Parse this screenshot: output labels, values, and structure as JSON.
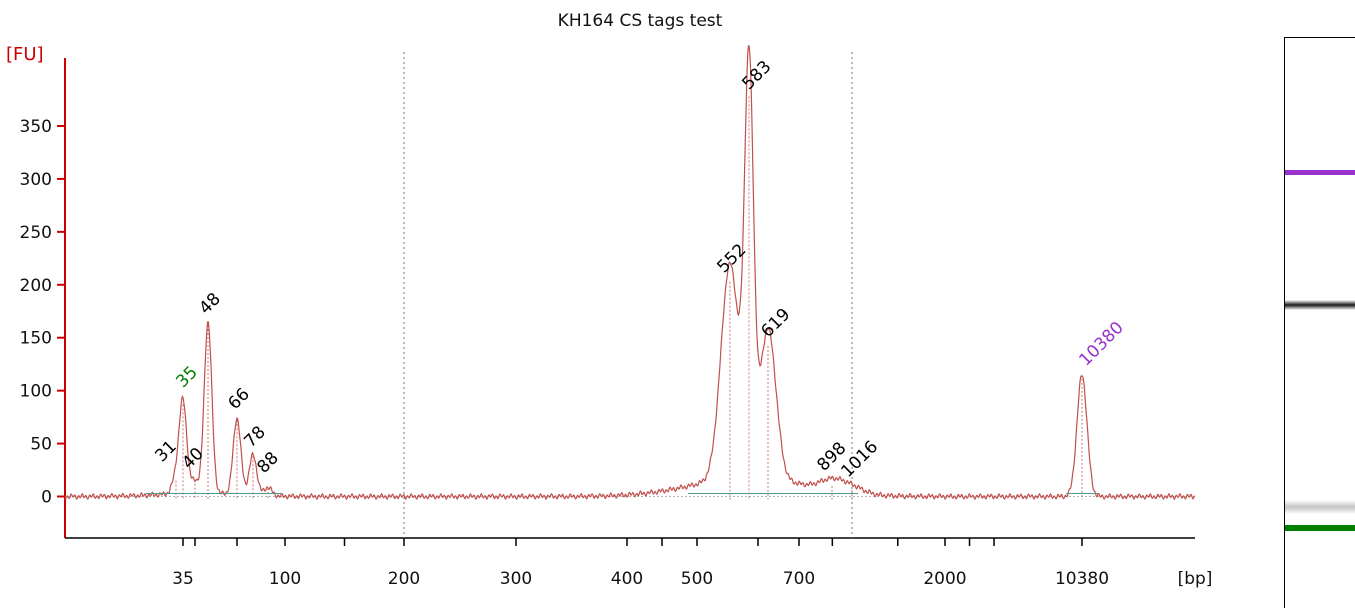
{
  "chart_data": {
    "type": "line",
    "title": "KH164 CS tags test",
    "ylabel": "[FU]",
    "xlabel": "[bp]",
    "ylim": [
      -45,
      420
    ],
    "y_ticks": [
      0,
      50,
      100,
      150,
      200,
      250,
      300,
      350
    ],
    "x_tick_labels": [
      "35",
      "100",
      "200",
      "300",
      "400",
      "500",
      "700",
      "2000",
      "10380"
    ],
    "grid": false,
    "series": [
      {
        "values": [
          [
            31,
            15
          ],
          [
            35,
            87
          ],
          [
            40,
            12
          ],
          [
            48,
            162
          ],
          [
            66,
            72
          ],
          [
            78,
            38
          ],
          [
            88,
            8
          ],
          [
            552,
            203
          ],
          [
            583,
            378
          ],
          [
            619,
            142
          ],
          [
            898,
            10
          ],
          [
            1016,
            6
          ],
          [
            10380,
            115
          ]
        ]
      }
    ],
    "peak_labels": [
      {
        "text": "31",
        "color": "#000000"
      },
      {
        "text": "35",
        "color": "#008000"
      },
      {
        "text": "40",
        "color": "#000000"
      },
      {
        "text": "48",
        "color": "#000000"
      },
      {
        "text": "66",
        "color": "#000000"
      },
      {
        "text": "78",
        "color": "#000000"
      },
      {
        "text": "88",
        "color": "#000000"
      },
      {
        "text": "552",
        "color": "#000000"
      },
      {
        "text": "583",
        "color": "#000000"
      },
      {
        "text": "619",
        "color": "#000000"
      },
      {
        "text": "898",
        "color": "#000000"
      },
      {
        "text": "1016",
        "color": "#000000"
      },
      {
        "text": "10380",
        "color": "#9932cc"
      }
    ],
    "colors": {
      "trace": "#c0504d",
      "axis": "#cc0000",
      "marker_upper": "#9932cc",
      "marker_lower": "#008000"
    }
  },
  "gel": {
    "bands": [
      {
        "color": "#9932cc",
        "intensity": 1.0
      },
      {
        "color": "#000000",
        "intensity": 0.9
      },
      {
        "color": "#555555",
        "intensity": 0.35
      },
      {
        "color": "#008000",
        "intensity": 1.0
      }
    ]
  }
}
